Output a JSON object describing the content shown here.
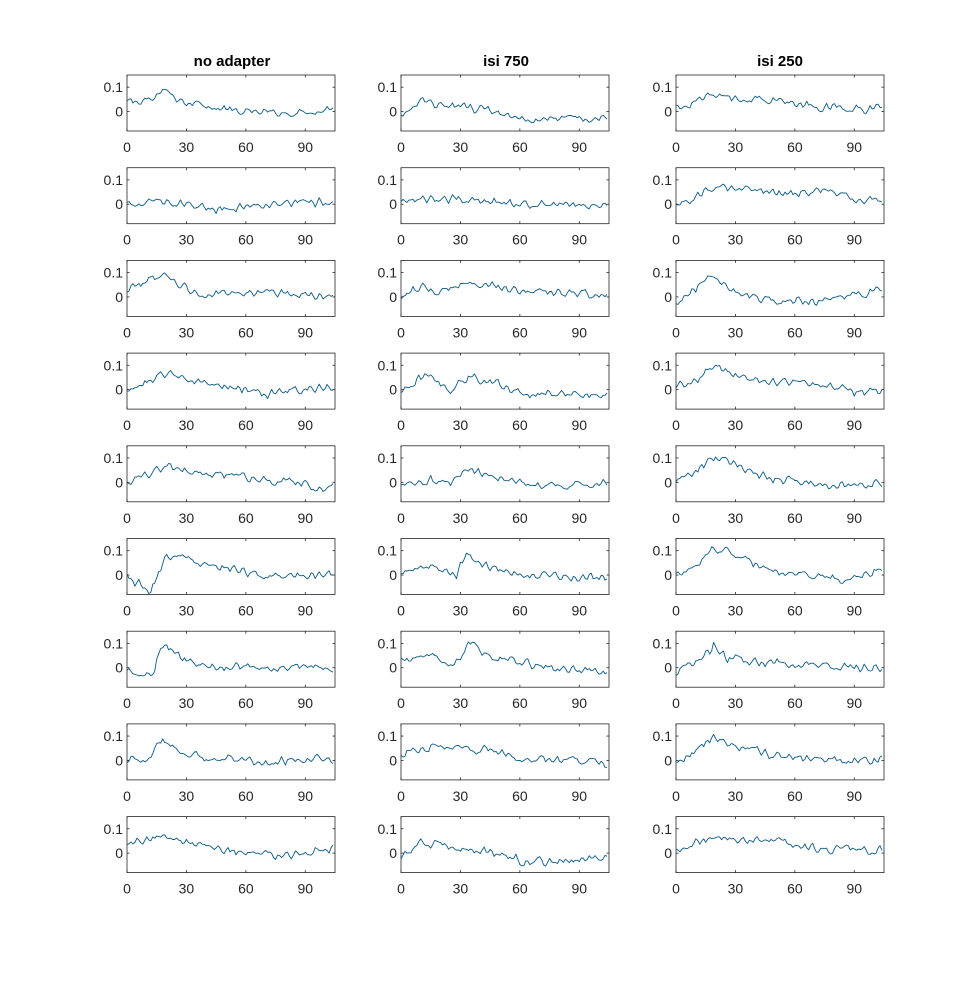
{
  "chart_data": {
    "type": "line",
    "columns": [
      "no adapter",
      "isi 750",
      "isi 250"
    ],
    "rows": 9,
    "x_ticks": [
      "0",
      "30",
      "60",
      "90"
    ],
    "x_tick_values": [
      0,
      30,
      60,
      90
    ],
    "y_ticks": [
      "0",
      "0.1"
    ],
    "y_tick_values": [
      0,
      0.1
    ],
    "xlim": [
      0,
      105
    ],
    "ylim": [
      -0.08,
      0.15
    ],
    "points_per_trace": 105,
    "line_color": "#0b5a87",
    "noise_amplitude": 0.022,
    "panels": [
      {
        "column": "no adapter",
        "row": 1,
        "shape": [
          [
            0,
            0.04
          ],
          [
            12,
            0.05
          ],
          [
            19,
            0.09
          ],
          [
            25,
            0.05
          ],
          [
            40,
            0.02
          ],
          [
            60,
            0.0
          ],
          [
            80,
            -0.01
          ],
          [
            104,
            0.02
          ]
        ]
      },
      {
        "column": "isi 750",
        "row": 1,
        "shape": [
          [
            0,
            -0.02
          ],
          [
            10,
            0.05
          ],
          [
            20,
            0.03
          ],
          [
            40,
            0.01
          ],
          [
            60,
            -0.03
          ],
          [
            75,
            -0.035
          ],
          [
            104,
            -0.02
          ]
        ]
      },
      {
        "column": "isi 250",
        "row": 1,
        "shape": [
          [
            0,
            0.02
          ],
          [
            10,
            0.04
          ],
          [
            19,
            0.07
          ],
          [
            30,
            0.05
          ],
          [
            50,
            0.05
          ],
          [
            70,
            0.02
          ],
          [
            104,
            0.01
          ]
        ]
      },
      {
        "column": "no adapter",
        "row": 2,
        "shape": [
          [
            0,
            0.0
          ],
          [
            12,
            0.01
          ],
          [
            25,
            0.0
          ],
          [
            45,
            -0.02
          ],
          [
            70,
            0.0
          ],
          [
            104,
            0.01
          ]
        ]
      },
      {
        "column": "isi 750",
        "row": 2,
        "shape": [
          [
            0,
            0.0
          ],
          [
            10,
            0.02
          ],
          [
            35,
            0.02
          ],
          [
            60,
            0.0
          ],
          [
            104,
            0.0
          ]
        ]
      },
      {
        "column": "isi 250",
        "row": 2,
        "shape": [
          [
            0,
            -0.01
          ],
          [
            10,
            0.03
          ],
          [
            20,
            0.07
          ],
          [
            40,
            0.05
          ],
          [
            60,
            0.04
          ],
          [
            75,
            0.06
          ],
          [
            90,
            0.02
          ],
          [
            104,
            0.02
          ]
        ]
      },
      {
        "column": "no adapter",
        "row": 3,
        "shape": [
          [
            0,
            0.03
          ],
          [
            10,
            0.06
          ],
          [
            20,
            0.09
          ],
          [
            28,
            0.04
          ],
          [
            40,
            0.01
          ],
          [
            60,
            0.02
          ],
          [
            80,
            0.02
          ],
          [
            104,
            0.0
          ]
        ]
      },
      {
        "column": "isi 750",
        "row": 3,
        "shape": [
          [
            0,
            0.0
          ],
          [
            10,
            0.04
          ],
          [
            20,
            0.02
          ],
          [
            35,
            0.06
          ],
          [
            55,
            0.03
          ],
          [
            75,
            0.02
          ],
          [
            104,
            0.01
          ]
        ]
      },
      {
        "column": "isi 250",
        "row": 3,
        "shape": [
          [
            0,
            -0.02
          ],
          [
            8,
            0.03
          ],
          [
            18,
            0.08
          ],
          [
            30,
            0.02
          ],
          [
            50,
            -0.02
          ],
          [
            70,
            -0.02
          ],
          [
            85,
            0.0
          ],
          [
            104,
            0.03
          ]
        ]
      },
      {
        "column": "no adapter",
        "row": 4,
        "shape": [
          [
            0,
            0.0
          ],
          [
            10,
            0.03
          ],
          [
            20,
            0.07
          ],
          [
            35,
            0.03
          ],
          [
            55,
            0.01
          ],
          [
            72,
            -0.02
          ],
          [
            85,
            0.0
          ],
          [
            104,
            0.01
          ]
        ]
      },
      {
        "column": "isi 750",
        "row": 4,
        "shape": [
          [
            0,
            -0.01
          ],
          [
            8,
            0.04
          ],
          [
            15,
            0.05
          ],
          [
            25,
            0.0
          ],
          [
            35,
            0.05
          ],
          [
            50,
            0.02
          ],
          [
            65,
            -0.02
          ],
          [
            80,
            -0.01
          ],
          [
            104,
            -0.02
          ]
        ]
      },
      {
        "column": "isi 250",
        "row": 4,
        "shape": [
          [
            0,
            0.01
          ],
          [
            10,
            0.04
          ],
          [
            18,
            0.09
          ],
          [
            30,
            0.06
          ],
          [
            50,
            0.03
          ],
          [
            75,
            0.02
          ],
          [
            90,
            -0.01
          ],
          [
            104,
            0.0
          ]
        ]
      },
      {
        "column": "no adapter",
        "row": 5,
        "shape": [
          [
            0,
            0.0
          ],
          [
            10,
            0.03
          ],
          [
            20,
            0.07
          ],
          [
            35,
            0.04
          ],
          [
            60,
            0.02
          ],
          [
            85,
            0.0
          ],
          [
            100,
            -0.03
          ],
          [
            104,
            0.0
          ]
        ]
      },
      {
        "column": "isi 750",
        "row": 5,
        "shape": [
          [
            0,
            -0.01
          ],
          [
            15,
            0.01
          ],
          [
            25,
            0.0
          ],
          [
            33,
            0.05
          ],
          [
            50,
            0.02
          ],
          [
            70,
            -0.02
          ],
          [
            104,
            0.0
          ]
        ]
      },
      {
        "column": "isi 250",
        "row": 5,
        "shape": [
          [
            0,
            0.0
          ],
          [
            10,
            0.05
          ],
          [
            20,
            0.1
          ],
          [
            30,
            0.07
          ],
          [
            45,
            0.02
          ],
          [
            65,
            0.0
          ],
          [
            80,
            -0.01
          ],
          [
            104,
            0.0
          ]
        ]
      },
      {
        "column": "no adapter",
        "row": 6,
        "shape": [
          [
            0,
            0.0
          ],
          [
            8,
            -0.05
          ],
          [
            12,
            -0.07
          ],
          [
            17,
            0.02
          ],
          [
            20,
            0.08
          ],
          [
            35,
            0.06
          ],
          [
            50,
            0.03
          ],
          [
            70,
            0.0
          ],
          [
            104,
            0.0
          ]
        ]
      },
      {
        "column": "isi 750",
        "row": 6,
        "shape": [
          [
            0,
            0.0
          ],
          [
            8,
            0.04
          ],
          [
            20,
            0.03
          ],
          [
            28,
            0.0
          ],
          [
            33,
            0.08
          ],
          [
            45,
            0.03
          ],
          [
            60,
            0.0
          ],
          [
            104,
            -0.01
          ]
        ]
      },
      {
        "column": "isi 250",
        "row": 6,
        "shape": [
          [
            0,
            0.0
          ],
          [
            10,
            0.04
          ],
          [
            20,
            0.11
          ],
          [
            30,
            0.08
          ],
          [
            50,
            0.02
          ],
          [
            70,
            -0.01
          ],
          [
            90,
            -0.02
          ],
          [
            104,
            0.03
          ]
        ]
      },
      {
        "column": "no adapter",
        "row": 7,
        "shape": [
          [
            0,
            -0.02
          ],
          [
            10,
            -0.02
          ],
          [
            14,
            -0.01
          ],
          [
            17,
            0.09
          ],
          [
            23,
            0.07
          ],
          [
            30,
            0.02
          ],
          [
            50,
            0.0
          ],
          [
            80,
            0.0
          ],
          [
            104,
            0.0
          ]
        ]
      },
      {
        "column": "isi 750",
        "row": 7,
        "shape": [
          [
            0,
            0.03
          ],
          [
            10,
            0.05
          ],
          [
            25,
            0.02
          ],
          [
            30,
            0.03
          ],
          [
            34,
            0.11
          ],
          [
            42,
            0.06
          ],
          [
            60,
            0.02
          ],
          [
            85,
            -0.01
          ],
          [
            104,
            -0.02
          ]
        ]
      },
      {
        "column": "isi 250",
        "row": 7,
        "shape": [
          [
            0,
            -0.02
          ],
          [
            8,
            0.02
          ],
          [
            17,
            0.06
          ],
          [
            19,
            0.1
          ],
          [
            25,
            0.04
          ],
          [
            45,
            0.02
          ],
          [
            70,
            0.01
          ],
          [
            104,
            0.0
          ]
        ]
      },
      {
        "column": "no adapter",
        "row": 8,
        "shape": [
          [
            0,
            0.0
          ],
          [
            10,
            0.0
          ],
          [
            18,
            0.08
          ],
          [
            25,
            0.04
          ],
          [
            40,
            0.01
          ],
          [
            60,
            0.0
          ],
          [
            72,
            -0.01
          ],
          [
            90,
            0.01
          ],
          [
            104,
            0.0
          ]
        ]
      },
      {
        "column": "isi 750",
        "row": 8,
        "shape": [
          [
            0,
            0.03
          ],
          [
            15,
            0.06
          ],
          [
            30,
            0.05
          ],
          [
            45,
            0.04
          ],
          [
            60,
            0.01
          ],
          [
            80,
            0.0
          ],
          [
            104,
            -0.01
          ]
        ]
      },
      {
        "column": "isi 250",
        "row": 8,
        "shape": [
          [
            0,
            0.0
          ],
          [
            8,
            0.03
          ],
          [
            18,
            0.09
          ],
          [
            30,
            0.06
          ],
          [
            50,
            0.02
          ],
          [
            70,
            0.0
          ],
          [
            104,
            0.0
          ]
        ]
      },
      {
        "column": "no adapter",
        "row": 9,
        "shape": [
          [
            0,
            0.04
          ],
          [
            12,
            0.05
          ],
          [
            19,
            0.08
          ],
          [
            25,
            0.05
          ],
          [
            40,
            0.02
          ],
          [
            60,
            0.0
          ],
          [
            80,
            -0.01
          ],
          [
            104,
            0.02
          ]
        ]
      },
      {
        "column": "isi 750",
        "row": 9,
        "shape": [
          [
            0,
            -0.02
          ],
          [
            10,
            0.04
          ],
          [
            20,
            0.03
          ],
          [
            40,
            0.01
          ],
          [
            60,
            -0.03
          ],
          [
            75,
            -0.035
          ],
          [
            104,
            -0.02
          ]
        ]
      },
      {
        "column": "isi 250",
        "row": 9,
        "shape": [
          [
            0,
            0.02
          ],
          [
            10,
            0.04
          ],
          [
            19,
            0.07
          ],
          [
            30,
            0.05
          ],
          [
            50,
            0.05
          ],
          [
            70,
            0.02
          ],
          [
            104,
            0.01
          ]
        ]
      }
    ]
  }
}
